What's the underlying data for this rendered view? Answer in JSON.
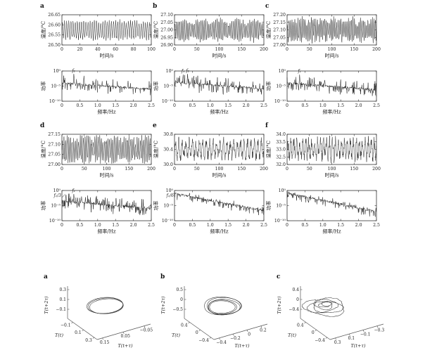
{
  "chart_data": {
    "figure1": {
      "description": "Six measurement points a-f: upper plot is temperature time series, lower plot is its power spectrum",
      "panels": [
        {
          "label": "a",
          "time_series": {
            "type": "line",
            "xlabel": "时间/s",
            "ylabel": "温度/°C",
            "xlim": [
              0,
              100
            ],
            "xticks": [
              "0",
              "20",
              "40",
              "60",
              "80",
              "100"
            ],
            "ylim": [
              26.5,
              26.65
            ],
            "yticks": [
              "26.65",
              "26.60",
              "26.55",
              "26.50"
            ],
            "mean": 26.575,
            "oscillation": "dense periodic oscillation, amplitude ≈0.04 °C",
            "render": {
              "cycles": 42,
              "ampFrac": 0.3,
              "noise": 0.5,
              "env": 0.25,
              "envCycles": 7,
              "seed": 11
            }
          },
          "power_spectrum": {
            "type": "line",
            "xlabel": "频率/Hz",
            "ylabel": "功率",
            "xlim": [
              0,
              2.5
            ],
            "xticks": [
              "0",
              "0.5",
              "1.0",
              "1.5",
              "2.0",
              "2.5"
            ],
            "yticks": [
              "10⁰",
              "10⁻⁵",
              "10⁻¹⁰"
            ],
            "peaks": [
              {
                "freq": 0.33,
                "h": 0.1,
                "label": "f₁",
                "style": "plain"
              },
              {
                "freq": 0.62,
                "h": 0.16
              },
              {
                "freq": 0.95,
                "h": 0.27
              },
              {
                "freq": 1.25,
                "h": 0.32
              },
              {
                "freq": 1.55,
                "h": 0.34
              },
              {
                "freq": 1.85,
                "h": 0.33
              }
            ],
            "render": {
              "start": 0.4,
              "end": 0.6,
              "spikeP": 0.12,
              "spikeUp": 0.26,
              "spikeDn": 0.24,
              "seed": 21
            }
          }
        },
        {
          "label": "b",
          "time_series": {
            "type": "line",
            "xlabel": "时间/s",
            "ylabel": "温度/°C",
            "xlim": [
              0,
              200
            ],
            "xticks": [
              "0",
              "50",
              "100",
              "150",
              "200"
            ],
            "ylim": [
              26.9,
              27.1
            ],
            "yticks": [
              "27.10",
              "27.05",
              "27.00",
              "26.95",
              "26.90"
            ],
            "mean": 27.0,
            "oscillation": "quasi-periodic oscillation with slow amplitude modulation",
            "render": {
              "cycles": 55,
              "ampFrac": 0.35,
              "noise": 0.5,
              "env": 0.5,
              "envCycles": 5,
              "seed": 12
            }
          },
          "power_spectrum": {
            "type": "line",
            "xlabel": "频率/Hz",
            "ylabel": "功率",
            "xlim": [
              0,
              2.5
            ],
            "xticks": [
              "0",
              "0.5",
              "1.0",
              "1.5",
              "2.0",
              "2.5"
            ],
            "yticks": [
              "10⁰",
              "10⁻⁵",
              "10⁻¹⁰"
            ],
            "peaks": [
              {
                "freq": 0.24,
                "h": 0.12,
                "label": "f₁",
                "style": "plain"
              },
              {
                "freq": 0.37,
                "h": 0.1,
                "label": "f₂",
                "style": "plain"
              },
              {
                "freq": 0.12,
                "h": 0.22
              },
              {
                "freq": 0.49,
                "h": 0.22
              },
              {
                "freq": 0.61,
                "h": 0.2
              },
              {
                "freq": 0.73,
                "h": 0.28
              },
              {
                "freq": 1.0,
                "h": 0.3
              }
            ],
            "render": {
              "start": 0.38,
              "end": 0.58,
              "spikeP": 0.15,
              "spikeUp": 0.28,
              "spikeDn": 0.26,
              "seed": 22
            }
          }
        },
        {
          "label": "c",
          "time_series": {
            "type": "line",
            "xlabel": "时间/s",
            "ylabel": "温度/°C",
            "xlim": [
              0,
              200
            ],
            "xticks": [
              "0",
              "50",
              "100",
              "150",
              "200"
            ],
            "ylim": [
              27.0,
              27.2
            ],
            "yticks": [
              "27.20",
              "27.15",
              "27.10",
              "27.05",
              "27.00"
            ],
            "mean": 27.1,
            "oscillation": "dense noisy oscillation band",
            "render": {
              "cycles": 60,
              "ampFrac": 0.32,
              "noise": 0.9,
              "env": 0.2,
              "envCycles": 9,
              "seed": 13
            }
          },
          "power_spectrum": {
            "type": "line",
            "xlabel": "频率/Hz",
            "ylabel": "功率",
            "xlim": [
              0,
              2.5
            ],
            "xticks": [
              "0",
              "0.5",
              "1.0",
              "1.5",
              "2.0",
              "2.5"
            ],
            "yticks": [
              "10⁰",
              "10⁻⁵",
              "10⁻¹⁰"
            ],
            "peaks": [
              {
                "freq": 0.35,
                "h": 0.12,
                "label": "f₁",
                "style": "plain"
              },
              {
                "freq": 0.7,
                "h": 0.26
              },
              {
                "freq": 1.05,
                "h": 0.3
              },
              {
                "freq": 1.5,
                "h": 0.28
              }
            ],
            "render": {
              "start": 0.4,
              "end": 0.62,
              "spikeP": 0.12,
              "spikeUp": 0.25,
              "spikeDn": 0.24,
              "seed": 23
            }
          }
        },
        {
          "label": "d",
          "time_series": {
            "type": "line",
            "xlabel": "时间/s",
            "ylabel": "温度/°C",
            "xlim": [
              0,
              200
            ],
            "xticks": [
              "0",
              "50",
              "100",
              "150",
              "200"
            ],
            "ylim": [
              27.0,
              27.15
            ],
            "yticks": [
              "27.15",
              "27.10",
              "27.05",
              "27.00"
            ],
            "mean": 27.075,
            "oscillation": "dense period-3 oscillation band",
            "render": {
              "cycles": 55,
              "ampFrac": 0.38,
              "noise": 0.8,
              "env": 0.25,
              "envCycles": 6,
              "seed": 14
            }
          },
          "power_spectrum": {
            "type": "line",
            "xlabel": "频率/Hz",
            "ylabel": "功率",
            "xlim": [
              0,
              2.5
            ],
            "xticks": [
              "0",
              "0.5",
              "1.0",
              "1.5",
              "2.0",
              "2.5"
            ],
            "yticks": [
              "10⁰",
              "10⁻⁵",
              "10⁻¹⁰"
            ],
            "peaks": [
              {
                "freq": 0.11,
                "h": 0.16,
                "label": "f₁/3",
                "style": "arrow"
              },
              {
                "freq": 0.33,
                "h": 0.12,
                "label": "f₁",
                "style": "plain"
              },
              {
                "freq": 0.22,
                "h": 0.26
              },
              {
                "freq": 0.44,
                "h": 0.24
              },
              {
                "freq": 0.55,
                "h": 0.2
              },
              {
                "freq": 0.66,
                "h": 0.22
              },
              {
                "freq": 0.77,
                "h": 0.3
              },
              {
                "freq": 1.0,
                "h": 0.28
              }
            ],
            "render": {
              "start": 0.35,
              "end": 0.6,
              "spikeP": 0.15,
              "spikeUp": 0.28,
              "spikeDn": 0.26,
              "seed": 24
            }
          }
        },
        {
          "label": "e",
          "time_series": {
            "type": "line",
            "xlabel": "时间/s",
            "ylabel": "温度/°C",
            "xlim": [
              0,
              200
            ],
            "xticks": [
              "0",
              "50",
              "100",
              "150",
              "200"
            ],
            "ylim": [
              30.0,
              30.8
            ],
            "yticks": [
              "30.8",
              "30.4",
              "30.0"
            ],
            "mean": 30.4,
            "oscillation": "irregular oscillation, amplitude ≈0.2 °C",
            "render": {
              "cycles": 26,
              "ampFrac": 0.28,
              "noise": 1.1,
              "env": 0.3,
              "envCycles": 8,
              "seed": 15
            }
          },
          "power_spectrum": {
            "type": "line",
            "xlabel": "频率/Hz",
            "ylabel": "功率",
            "xlim": [
              0,
              2.5
            ],
            "xticks": [
              "0",
              "0.5",
              "1.0",
              "1.5",
              "2.0",
              "2.5"
            ],
            "yticks": [
              "10⁰",
              "10⁻⁵",
              "10⁻¹⁰"
            ],
            "peaks": [
              {
                "freq": 0.03,
                "h": 0.1,
                "label": "f₁/6",
                "style": "arrow"
              }
            ],
            "render": {
              "start": 0.1,
              "end": 0.66,
              "spikeP": 0.06,
              "spikeUp": 0.12,
              "spikeDn": 0.18,
              "seed": 25
            }
          }
        },
        {
          "label": "f",
          "time_series": {
            "type": "line",
            "xlabel": "时间/s",
            "ylabel": "温度/°C",
            "xlim": [
              0,
              200
            ],
            "xticks": [
              "0",
              "50",
              "100",
              "150",
              "200"
            ],
            "ylim": [
              32.0,
              34.0
            ],
            "yticks": [
              "34.0",
              "33.5",
              "33.0",
              "32.5",
              "32.0"
            ],
            "mean": 33.1,
            "oscillation": "broadband chaotic fluctuation",
            "render": {
              "cycles": 30,
              "ampFrac": 0.3,
              "noise": 1.2,
              "env": 0.3,
              "envCycles": 7,
              "seed": 16
            }
          },
          "power_spectrum": {
            "type": "line",
            "xlabel": "频率/Hz",
            "ylabel": "功率",
            "xlim": [
              0,
              2.5
            ],
            "xticks": [
              "0",
              "0.5",
              "1.0",
              "1.5",
              "2.0",
              "2.5"
            ],
            "yticks": [
              "10⁰",
              "10⁻⁵",
              "10⁻¹⁰"
            ],
            "peaks": [],
            "render": {
              "start": 0.08,
              "end": 0.7,
              "spikeP": 0.06,
              "spikeUp": 0.12,
              "spikeDn": 0.18,
              "seed": 26
            }
          }
        }
      ]
    },
    "figure2": {
      "description": "Reconstructed phase-space attractors with delay coordinates",
      "panels": [
        {
          "label": "a",
          "attractor": "limit-cycle",
          "axes": {
            "z": {
              "label": "T(t+2τ)",
              "ticks": [
                "0.3",
                "0.1",
                "−0.1"
              ]
            },
            "x": {
              "label": "T(t)",
              "ticks": [
                "−0.1",
                "0.1",
                "0.3"
              ]
            },
            "y": {
              "label": "T(t+τ)",
              "ticks": [
                "0.15",
                "0.05",
                "−0.05"
              ]
            }
          }
        },
        {
          "label": "b",
          "attractor": "torus",
          "axes": {
            "z": {
              "label": "T(t+2τ)",
              "ticks": [
                "0.5",
                "0",
                "−0.5"
              ]
            },
            "x": {
              "label": "T(t)",
              "ticks": [
                "0.4",
                "0",
                "−0.4"
              ]
            },
            "y": {
              "label": "T(t+τ)",
              "ticks": [
                "−0.4",
                "−0.2",
                "0",
                "0.2"
              ]
            }
          }
        },
        {
          "label": "c",
          "attractor": "chaotic-spiral",
          "axes": {
            "z": {
              "label": "T(t+2τ)",
              "ticks": [
                "0.4",
                "0",
                "−0.4"
              ]
            },
            "x": {
              "label": "T(t)",
              "ticks": [
                "0.4",
                "0",
                "−0.4"
              ]
            },
            "y": {
              "label": "T(t+τ)",
              "ticks": [
                "0.3",
                "0.1",
                "−0.1",
                "−0.3"
              ]
            }
          }
        }
      ]
    },
    "colors": {
      "trace": "#1a1a1a",
      "axis": "#333333",
      "text": "#222222"
    }
  }
}
